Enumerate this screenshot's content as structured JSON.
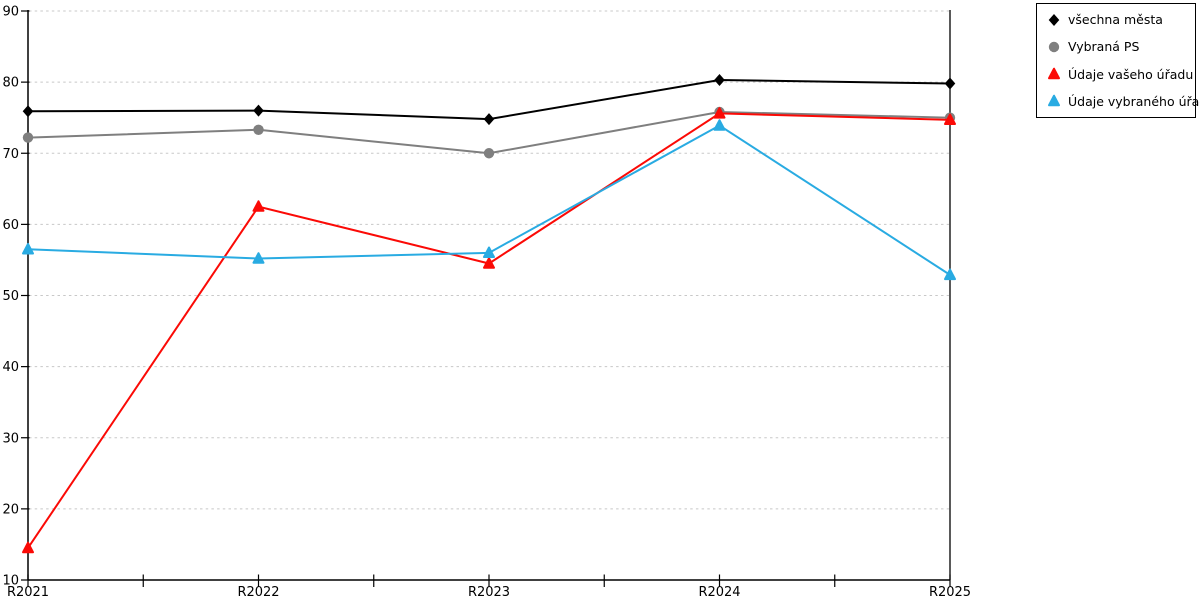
{
  "chart_data": {
    "type": "line",
    "title": "",
    "xlabel": "",
    "ylabel": "",
    "categories": [
      "R2021",
      "R2022",
      "R2023",
      "R2024",
      "R2025"
    ],
    "series": [
      {
        "name": "všechna města",
        "color": "#000000",
        "marker": "diamond",
        "values": [
          75.9,
          76.0,
          74.8,
          80.3,
          79.8
        ]
      },
      {
        "name": "Vybraná PS",
        "color": "#7f7f7f",
        "marker": "circle",
        "values": [
          72.2,
          73.3,
          70.0,
          75.8,
          75.0
        ]
      },
      {
        "name": "Údaje vašeho úřadu",
        "color": "#fb0a06",
        "marker": "triangle",
        "values": [
          14.5,
          62.5,
          54.5,
          75.6,
          74.7
        ]
      },
      {
        "name": "Údaje vybraného úřadu",
        "color": "#29abe2",
        "marker": "triangle",
        "values": [
          56.5,
          55.2,
          56.0,
          73.9,
          52.9
        ]
      }
    ],
    "ylim": [
      10,
      90
    ],
    "yticks": [
      10,
      20,
      30,
      40,
      50,
      60,
      70,
      80,
      90
    ],
    "ytick_step": 10,
    "grid": "horizontal-dashed",
    "legend_position": "top-right-outside"
  },
  "colors": {
    "axis": "#000000",
    "gridline": "#c8c8c8",
    "background": "#ffffff",
    "legend_border": "#000000"
  }
}
